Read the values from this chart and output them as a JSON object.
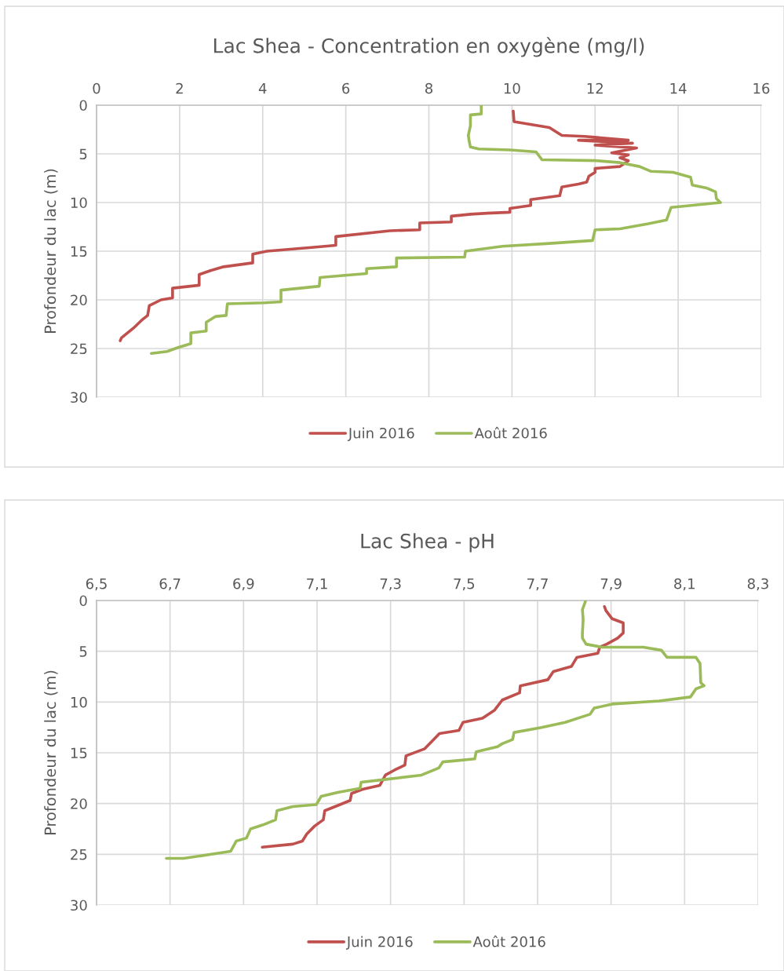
{
  "chart_data": [
    {
      "type": "line",
      "title": "Lac Shea - Concentration en oxygène (mg/l)",
      "ylabel": "Profondeur du lac (m)",
      "xlim": [
        0,
        16
      ],
      "xticks": [
        0,
        2,
        4,
        6,
        8,
        10,
        12,
        14,
        16
      ],
      "ylim": [
        30,
        0
      ],
      "yticks": [
        0,
        5,
        10,
        15,
        20,
        25,
        30
      ],
      "grid": true,
      "legend": "bottom",
      "marker": "none",
      "line_style": "solid",
      "series": [
        {
          "name": "Juin 2016",
          "color": "#c0504d",
          "x": [
            10.03,
            10.05,
            10.9,
            11.2,
            11.75,
            12.8,
            11.6,
            12.9,
            12.0,
            13.0,
            12.4,
            12.8,
            12.6,
            12.8,
            12.6,
            12.0,
            12.0,
            11.85,
            11.8,
            11.6,
            11.2,
            11.15,
            10.45,
            10.45,
            9.95,
            9.95,
            9.4,
            9.01,
            8.54,
            8.54,
            7.78,
            7.78,
            7.06,
            5.76,
            5.76,
            5.23,
            4.1,
            3.76,
            3.76,
            3.06,
            2.74,
            2.47,
            2.47,
            1.83,
            1.83,
            1.55,
            1.27,
            1.23,
            1.11,
            0.89,
            0.6,
            0.57
          ],
          "values": [
            0.6,
            1.7,
            2.3,
            3.1,
            3.2,
            3.6,
            3.6,
            3.9,
            4.1,
            4.4,
            4.9,
            5.1,
            5.4,
            5.7,
            6.3,
            6.5,
            6.9,
            7.3,
            7.9,
            8.1,
            8.4,
            9.3,
            9.7,
            10.3,
            10.6,
            11.0,
            11.1,
            11.2,
            11.4,
            12.0,
            12.1,
            12.8,
            12.9,
            13.5,
            14.4,
            14.6,
            15.0,
            15.3,
            16.2,
            16.6,
            17.0,
            17.4,
            18.5,
            18.8,
            19.8,
            20.0,
            20.6,
            21.6,
            22.0,
            22.9,
            23.9,
            24.2
          ]
        },
        {
          "name": "Août 2016",
          "color": "#9bbb59",
          "x": [
            9.26,
            9.26,
            9.0,
            9.0,
            8.95,
            8.97,
            9.0,
            9.2,
            9.95,
            10.58,
            10.72,
            12.03,
            12.6,
            13.07,
            13.35,
            13.88,
            14.3,
            14.34,
            14.68,
            14.9,
            14.92,
            15.02,
            13.83,
            13.72,
            13.26,
            12.6,
            12.0,
            11.94,
            10.9,
            9.77,
            8.88,
            8.86,
            7.22,
            7.22,
            6.5,
            6.5,
            5.93,
            5.38,
            5.36,
            4.9,
            4.44,
            4.44,
            4.04,
            3.15,
            3.12,
            2.87,
            2.64,
            2.64,
            2.27,
            2.27,
            1.96,
            1.7,
            1.32
          ],
          "values": [
            0.0,
            0.9,
            1.0,
            2.1,
            3.1,
            3.7,
            4.3,
            4.5,
            4.6,
            4.8,
            5.6,
            5.7,
            5.9,
            6.3,
            6.8,
            6.9,
            7.4,
            8.2,
            8.5,
            8.9,
            9.6,
            10.0,
            10.5,
            11.8,
            12.2,
            12.7,
            12.8,
            13.9,
            14.2,
            14.5,
            15.0,
            15.6,
            15.7,
            16.6,
            16.8,
            17.3,
            17.5,
            17.7,
            18.6,
            18.8,
            19.0,
            20.2,
            20.3,
            20.4,
            21.6,
            21.7,
            22.3,
            23.2,
            23.4,
            24.5,
            24.9,
            25.3,
            25.5
          ]
        }
      ]
    },
    {
      "type": "line",
      "title": "Lac Shea - pH",
      "ylabel": "Profondeur du lac (m)",
      "xlim": [
        6.5,
        8.3
      ],
      "xticks": [
        {
          "value": 6.5,
          "label": "6,5"
        },
        {
          "value": 6.7,
          "label": "6,7"
        },
        {
          "value": 6.9,
          "label": "6,9"
        },
        {
          "value": 7.1,
          "label": "7,1"
        },
        {
          "value": 7.3,
          "label": "7,3"
        },
        {
          "value": 7.5,
          "label": "7,5"
        },
        {
          "value": 7.7,
          "label": "7,7"
        },
        {
          "value": 7.9,
          "label": "7,9"
        },
        {
          "value": 8.1,
          "label": "8,1"
        },
        {
          "value": 8.3,
          "label": "8,3"
        }
      ],
      "ylim": [
        30,
        0
      ],
      "yticks": [
        0,
        5,
        10,
        15,
        20,
        25,
        30
      ],
      "grid": true,
      "legend": "bottom",
      "marker": "none",
      "line_style": "solid",
      "series": [
        {
          "name": "Juin 2016",
          "color": "#c0504d",
          "x": [
            7.882,
            7.886,
            7.903,
            7.933,
            7.933,
            7.918,
            7.888,
            7.869,
            7.864,
            7.807,
            7.792,
            7.743,
            7.728,
            7.653,
            7.651,
            7.604,
            7.583,
            7.55,
            7.497,
            7.486,
            7.433,
            7.393,
            7.342,
            7.339,
            7.311,
            7.286,
            7.271,
            7.224,
            7.194,
            7.19,
            7.156,
            7.121,
            7.117,
            7.094,
            7.072,
            7.06,
            7.034,
            6.951
          ],
          "values": [
            0.6,
            1.0,
            1.8,
            2.2,
            3.2,
            3.7,
            4.3,
            4.6,
            5.2,
            5.6,
            6.5,
            7.0,
            7.8,
            8.4,
            9.1,
            9.8,
            10.8,
            11.6,
            12.0,
            12.8,
            13.1,
            14.6,
            15.3,
            16.2,
            16.7,
            17.2,
            18.2,
            18.6,
            19.0,
            19.7,
            20.2,
            20.7,
            21.6,
            22.2,
            23.0,
            23.7,
            24.0,
            24.3
          ]
        },
        {
          "name": "Août 2016",
          "color": "#9bbb59",
          "x": [
            7.83,
            7.822,
            7.824,
            7.822,
            7.822,
            7.832,
            7.875,
            7.988,
            8.037,
            8.052,
            8.131,
            8.142,
            8.144,
            8.153,
            8.131,
            8.116,
            8.031,
            7.903,
            7.854,
            7.843,
            7.775,
            7.711,
            7.636,
            7.632,
            7.604,
            7.591,
            7.533,
            7.529,
            7.472,
            7.442,
            7.431,
            7.384,
            7.292,
            7.22,
            7.217,
            7.156,
            7.111,
            7.098,
            7.034,
            6.991,
            6.987,
            6.953,
            6.919,
            6.908,
            6.88,
            6.865,
            6.812,
            6.737,
            6.69
          ],
          "values": [
            0.1,
            0.9,
            1.9,
            3.2,
            3.7,
            4.3,
            4.6,
            4.6,
            4.9,
            5.6,
            5.6,
            6.2,
            8.1,
            8.4,
            8.7,
            9.5,
            9.9,
            10.2,
            10.6,
            11.2,
            12.0,
            12.5,
            13.0,
            13.7,
            14.1,
            14.4,
            14.9,
            15.6,
            15.8,
            15.9,
            16.5,
            17.2,
            17.6,
            17.9,
            18.5,
            18.9,
            19.3,
            20.1,
            20.3,
            20.7,
            21.6,
            22.1,
            22.5,
            23.4,
            23.7,
            24.7,
            25.0,
            25.4,
            25.4
          ]
        }
      ]
    }
  ]
}
